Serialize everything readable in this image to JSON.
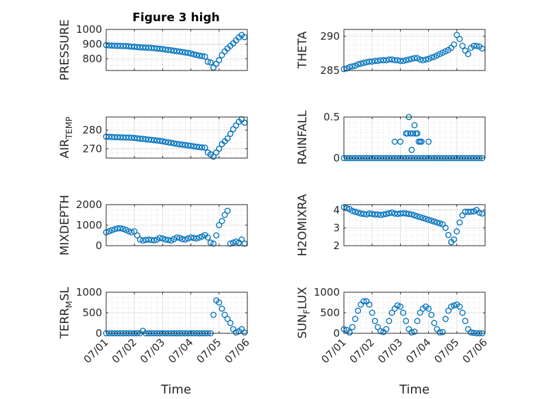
{
  "figure": {
    "title": "Figure 3 high"
  },
  "x_axis": {
    "label": "Time",
    "tick_labels": [
      "07/01",
      "07/02",
      "07/03",
      "07/04",
      "07/05",
      "07/06"
    ]
  },
  "chart_data": [
    {
      "type": "scatter",
      "title": "Figure 3 high",
      "ylabel": "PRESSURE",
      "ylabel_sub": "",
      "xlim": [
        0,
        5
      ],
      "ylim": [
        720,
        1000
      ],
      "yticks": [
        800,
        900,
        1000
      ],
      "grid": true,
      "marker": "circle",
      "color": "#0072BD",
      "x": [
        0,
        0.1,
        0.2,
        0.3,
        0.4,
        0.5,
        0.6,
        0.7,
        0.8,
        0.9,
        1,
        1.1,
        1.2,
        1.3,
        1.4,
        1.5,
        1.6,
        1.7,
        1.8,
        1.9,
        2,
        2.1,
        2.2,
        2.3,
        2.4,
        2.5,
        2.6,
        2.7,
        2.8,
        2.9,
        3,
        3.1,
        3.2,
        3.3,
        3.4,
        3.5,
        3.6,
        3.7,
        3.8,
        3.9,
        4,
        4.1,
        4.2,
        4.3,
        4.4,
        4.5,
        4.6,
        4.7,
        4.8,
        4.9
      ],
      "y": [
        893,
        891,
        890,
        889,
        888,
        888,
        887,
        887,
        885,
        883,
        882,
        880,
        878,
        877,
        876,
        875,
        874,
        872,
        870,
        868,
        866,
        863,
        860,
        858,
        855,
        852,
        849,
        846,
        843,
        840,
        836,
        830,
        826,
        822,
        818,
        815,
        780,
        775,
        740,
        765,
        790,
        825,
        850,
        870,
        888,
        905,
        925,
        945,
        962,
        948
      ]
    },
    {
      "type": "scatter",
      "title": "",
      "ylabel": "THETA",
      "ylabel_sub": "",
      "xlim": [
        0,
        5
      ],
      "ylim": [
        285,
        291
      ],
      "yticks": [
        285,
        290
      ],
      "grid": true,
      "marker": "circle",
      "color": "#0072BD",
      "x": [
        0,
        0.1,
        0.2,
        0.3,
        0.4,
        0.5,
        0.6,
        0.7,
        0.8,
        0.9,
        1,
        1.1,
        1.2,
        1.3,
        1.4,
        1.5,
        1.6,
        1.7,
        1.8,
        1.9,
        2,
        2.1,
        2.2,
        2.3,
        2.4,
        2.5,
        2.6,
        2.7,
        2.8,
        2.9,
        3,
        3.1,
        3.2,
        3.3,
        3.4,
        3.5,
        3.6,
        3.7,
        3.8,
        3.9,
        4,
        4.1,
        4.2,
        4.3,
        4.4,
        4.5,
        4.6,
        4.7,
        4.8,
        4.9
      ],
      "y": [
        285.2,
        285.3,
        285.5,
        285.6,
        285.7,
        285.9,
        286.0,
        286.1,
        286.2,
        286.3,
        286.3,
        286.4,
        286.4,
        286.5,
        286.5,
        286.5,
        286.6,
        286.6,
        286.5,
        286.5,
        286.4,
        286.4,
        286.5,
        286.6,
        286.7,
        286.8,
        286.8,
        286.6,
        286.5,
        286.6,
        286.7,
        286.9,
        287.0,
        287.2,
        287.4,
        287.6,
        287.8,
        288.0,
        288.3,
        288.8,
        290.2,
        289.6,
        288.6,
        287.9,
        287.4,
        288.3,
        288.6,
        288.6,
        288.5,
        288.2
      ]
    },
    {
      "type": "scatter",
      "title": "",
      "ylabel": "AIR",
      "ylabel_sub": "TEMP",
      "xlim": [
        0,
        5
      ],
      "ylim": [
        265,
        287
      ],
      "yticks": [
        270,
        280
      ],
      "grid": true,
      "marker": "circle",
      "color": "#0072BD",
      "x": [
        0,
        0.1,
        0.2,
        0.3,
        0.4,
        0.5,
        0.6,
        0.7,
        0.8,
        0.9,
        1,
        1.1,
        1.2,
        1.3,
        1.4,
        1.5,
        1.6,
        1.7,
        1.8,
        1.9,
        2,
        2.1,
        2.2,
        2.3,
        2.4,
        2.5,
        2.6,
        2.7,
        2.8,
        2.9,
        3,
        3.1,
        3.2,
        3.3,
        3.4,
        3.5,
        3.6,
        3.7,
        3.8,
        3.9,
        4,
        4.1,
        4.2,
        4.3,
        4.4,
        4.5,
        4.6,
        4.7,
        4.8,
        4.9
      ],
      "y": [
        276.5,
        276.4,
        276.3,
        276.2,
        276.2,
        276.1,
        276.1,
        276.0,
        276.0,
        275.9,
        275.8,
        275.6,
        275.4,
        275.3,
        275.1,
        274.9,
        274.8,
        274.6,
        274.4,
        274.3,
        274.0,
        273.7,
        273.4,
        273.2,
        272.9,
        272.6,
        272.4,
        272.2,
        272.0,
        271.8,
        271.6,
        271.3,
        271.1,
        270.9,
        270.7,
        270.6,
        268.0,
        267.0,
        265.8,
        268.0,
        270.0,
        272.5,
        274.0,
        275.5,
        278.0,
        280.5,
        282.5,
        284.5,
        285.8,
        284.0
      ]
    },
    {
      "type": "scatter",
      "title": "",
      "ylabel": "RAINFALL",
      "ylabel_sub": "",
      "xlim": [
        0,
        5
      ],
      "ylim": [
        0,
        0.5
      ],
      "yticks": [
        0,
        0.5
      ],
      "grid": true,
      "marker": "circle",
      "color": "#0072BD",
      "x": [
        0,
        0.1,
        0.2,
        0.3,
        0.4,
        0.5,
        0.6,
        0.7,
        0.8,
        0.9,
        1,
        1.1,
        1.2,
        1.3,
        1.4,
        1.5,
        1.6,
        1.7,
        1.8,
        1.9,
        2,
        2.1,
        2.2,
        2.3,
        2.4,
        2.5,
        2.6,
        2.7,
        2.8,
        2.9,
        3,
        3.1,
        3.2,
        3.3,
        3.4,
        3.5,
        3.6,
        3.7,
        3.8,
        3.9,
        4,
        4.1,
        4.2,
        4.3,
        4.4,
        4.5,
        4.6,
        4.7,
        4.8,
        4.9,
        1.8,
        2.0,
        2.2,
        2.25,
        2.3,
        2.35,
        2.4,
        2.45,
        2.5,
        2.55,
        2.6,
        2.65,
        2.7,
        2.75,
        3.0
      ],
      "y": [
        0,
        0,
        0,
        0,
        0,
        0,
        0,
        0,
        0,
        0,
        0,
        0,
        0,
        0,
        0,
        0,
        0,
        0,
        0,
        0,
        0,
        0,
        0,
        0,
        0,
        0,
        0,
        0,
        0,
        0,
        0,
        0,
        0,
        0,
        0,
        0,
        0,
        0,
        0,
        0,
        0,
        0,
        0,
        0,
        0,
        0,
        0,
        0,
        0,
        0,
        0.2,
        0.2,
        0.3,
        0.3,
        0.5,
        0.3,
        0.1,
        0.3,
        0.4,
        0.3,
        0.3,
        0.2,
        0.2,
        0.2,
        0.2
      ]
    },
    {
      "type": "scatter",
      "title": "",
      "ylabel": "MIXDEPTH",
      "ylabel_sub": "",
      "xlim": [
        0,
        5
      ],
      "ylim": [
        0,
        2000
      ],
      "yticks": [
        0,
        1000,
        2000
      ],
      "grid": true,
      "marker": "circle",
      "color": "#0072BD",
      "x": [
        0,
        0.1,
        0.2,
        0.3,
        0.4,
        0.5,
        0.6,
        0.7,
        0.8,
        0.9,
        1,
        1.1,
        1.2,
        1.3,
        1.4,
        1.5,
        1.6,
        1.7,
        1.8,
        1.9,
        2,
        2.1,
        2.2,
        2.3,
        2.4,
        2.5,
        2.6,
        2.7,
        2.8,
        2.9,
        3,
        3.1,
        3.2,
        3.3,
        3.4,
        3.5,
        3.6,
        3.7,
        3.8,
        3.9,
        4,
        4.1,
        4.2,
        4.3,
        4.4,
        4.5,
        4.6,
        4.7,
        4.8,
        4.9
      ],
      "y": [
        650,
        700,
        760,
        800,
        840,
        850,
        820,
        770,
        700,
        650,
        700,
        500,
        300,
        250,
        280,
        300,
        280,
        260,
        300,
        380,
        350,
        300,
        280,
        250,
        320,
        400,
        380,
        320,
        300,
        350,
        400,
        380,
        350,
        400,
        450,
        520,
        400,
        150,
        100,
        500,
        1000,
        1200,
        1500,
        1700,
        100,
        150,
        200,
        150,
        300,
        100
      ]
    },
    {
      "type": "scatter",
      "title": "",
      "ylabel": "H2OMIXRA",
      "ylabel_sub": "",
      "xlim": [
        0,
        5
      ],
      "ylim": [
        2,
        4.3
      ],
      "yticks": [
        2,
        3,
        4
      ],
      "grid": true,
      "marker": "circle",
      "color": "#0072BD",
      "x": [
        0,
        0.1,
        0.2,
        0.3,
        0.4,
        0.5,
        0.6,
        0.7,
        0.8,
        0.9,
        1,
        1.1,
        1.2,
        1.3,
        1.4,
        1.5,
        1.6,
        1.7,
        1.8,
        1.9,
        2,
        2.1,
        2.2,
        2.3,
        2.4,
        2.5,
        2.6,
        2.7,
        2.8,
        2.9,
        3,
        3.1,
        3.2,
        3.3,
        3.4,
        3.5,
        3.6,
        3.7,
        3.8,
        3.9,
        4,
        4.1,
        4.2,
        4.3,
        4.4,
        4.5,
        4.6,
        4.7,
        4.8,
        4.9
      ],
      "y": [
        4.15,
        4.1,
        4.05,
        3.95,
        3.9,
        3.85,
        3.8,
        3.78,
        3.75,
        3.8,
        3.78,
        3.75,
        3.75,
        3.72,
        3.75,
        3.78,
        3.82,
        3.85,
        3.8,
        3.78,
        3.8,
        3.82,
        3.8,
        3.78,
        3.75,
        3.7,
        3.65,
        3.6,
        3.55,
        3.5,
        3.45,
        3.4,
        3.35,
        3.3,
        3.25,
        3.2,
        3.0,
        2.6,
        2.2,
        2.35,
        2.8,
        3.3,
        3.7,
        3.9,
        3.9,
        3.9,
        3.92,
        4.0,
        3.85,
        3.8
      ]
    },
    {
      "type": "scatter",
      "title": "",
      "ylabel": "TERR",
      "ylabel_sub": "M",
      "ylabel_suffix": "SL",
      "xlim": [
        0,
        5
      ],
      "ylim": [
        0,
        1000
      ],
      "yticks": [
        0,
        500,
        1000
      ],
      "grid": true,
      "marker": "circle",
      "color": "#0072BD",
      "x": [
        0,
        0.1,
        0.2,
        0.3,
        0.4,
        0.5,
        0.6,
        0.7,
        0.8,
        0.9,
        1,
        1.1,
        1.2,
        1.3,
        1.4,
        1.5,
        1.6,
        1.7,
        1.8,
        1.9,
        2,
        2.1,
        2.2,
        2.3,
        2.4,
        2.5,
        2.6,
        2.7,
        2.8,
        2.9,
        3,
        3.1,
        3.2,
        3.3,
        3.4,
        3.5,
        3.6,
        3.7,
        3.8,
        3.9,
        4,
        4.1,
        4.2,
        4.3,
        4.4,
        4.5,
        4.6,
        4.7,
        4.8,
        4.9
      ],
      "y": [
        0,
        0,
        0,
        0,
        0,
        0,
        0,
        0,
        0,
        0,
        0,
        0,
        0,
        60,
        0,
        0,
        0,
        0,
        0,
        0,
        0,
        0,
        0,
        0,
        0,
        0,
        0,
        0,
        0,
        0,
        0,
        0,
        0,
        0,
        0,
        0,
        0,
        0,
        450,
        800,
        750,
        600,
        450,
        350,
        250,
        100,
        20,
        50,
        100,
        20
      ]
    },
    {
      "type": "scatter",
      "title": "",
      "ylabel": "SUN",
      "ylabel_sub": "F",
      "ylabel_suffix": "LUX",
      "xlim": [
        0,
        5
      ],
      "ylim": [
        0,
        1000
      ],
      "yticks": [
        0,
        500,
        1000
      ],
      "grid": true,
      "marker": "circle",
      "color": "#0072BD",
      "x": [
        0,
        0.1,
        0.2,
        0.3,
        0.4,
        0.5,
        0.6,
        0.7,
        0.8,
        0.9,
        1,
        1.1,
        1.2,
        1.3,
        1.4,
        1.5,
        1.6,
        1.7,
        1.8,
        1.9,
        2,
        2.1,
        2.2,
        2.3,
        2.4,
        2.5,
        2.6,
        2.7,
        2.8,
        2.9,
        3,
        3.1,
        3.2,
        3.3,
        3.4,
        3.5,
        3.6,
        3.7,
        3.8,
        3.9,
        4,
        4.1,
        4.2,
        4.3,
        4.4,
        4.5,
        4.6,
        4.7,
        4.8,
        4.9
      ],
      "y": [
        100,
        80,
        20,
        150,
        350,
        550,
        700,
        780,
        780,
        700,
        500,
        300,
        150,
        50,
        30,
        100,
        300,
        500,
        600,
        680,
        650,
        500,
        300,
        100,
        20,
        40,
        300,
        500,
        600,
        650,
        600,
        450,
        250,
        100,
        20,
        30,
        350,
        550,
        650,
        680,
        700,
        650,
        500,
        300,
        100,
        20,
        10,
        0,
        0,
        0
      ]
    }
  ]
}
